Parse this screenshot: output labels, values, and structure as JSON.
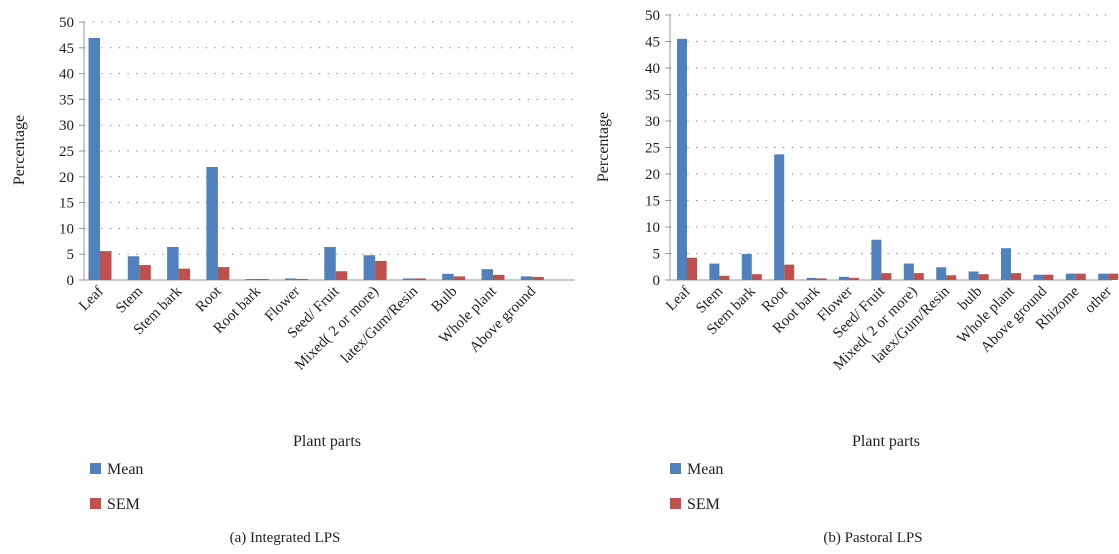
{
  "chart_data": [
    {
      "type": "bar",
      "caption": "(a)  Integrated LPS",
      "xlabel": "Plant parts",
      "ylabel": "Percentage",
      "ylim": [
        0,
        50
      ],
      "yticks": [
        0,
        5,
        10,
        15,
        20,
        25,
        30,
        35,
        40,
        45,
        50
      ],
      "grid": "dotted horizontal",
      "legend_position": "bottom-left",
      "categories": [
        "Leaf",
        "Stem",
        "Stem bark",
        "Root",
        "Root bark",
        "Flower",
        "Seed/ Fruit",
        "Mixed( 2 or more)",
        "latex/Gum/Resin",
        "Bulb",
        "Whole plant",
        "Above ground"
      ],
      "series": [
        {
          "name": "Mean",
          "color": "#4f81bd",
          "values": [
            46.9,
            4.6,
            6.4,
            21.9,
            0.2,
            0.3,
            6.4,
            4.8,
            0.3,
            1.2,
            2.1,
            0.7
          ]
        },
        {
          "name": "SEM",
          "color": "#c0504d",
          "values": [
            5.6,
            2.9,
            2.2,
            2.5,
            0.2,
            0.2,
            1.7,
            3.7,
            0.3,
            0.7,
            1.0,
            0.6
          ]
        }
      ]
    },
    {
      "type": "bar",
      "caption": "(b)  Pastoral LPS",
      "xlabel": "Plant parts",
      "ylabel": "Percentage",
      "ylim": [
        0,
        50
      ],
      "yticks": [
        0,
        5,
        10,
        15,
        20,
        25,
        30,
        35,
        40,
        45,
        50
      ],
      "grid": "dotted horizontal",
      "legend_position": "bottom-left",
      "categories": [
        "Leaf",
        "Stem",
        "Stem bark",
        "Root",
        "Root bark",
        "Flower",
        "Seed/ Fruit",
        "Mixed( 2 or more)",
        "latex/Gum/Resin",
        "bulb",
        "Whole plant",
        "Above ground",
        "Rhizome",
        "other"
      ],
      "series": [
        {
          "name": "Mean",
          "color": "#4f81bd",
          "values": [
            45.5,
            3.1,
            4.9,
            23.7,
            0.4,
            0.6,
            7.6,
            3.1,
            2.4,
            1.6,
            6.0,
            1.0,
            1.2,
            1.2
          ]
        },
        {
          "name": "SEM",
          "color": "#c0504d",
          "values": [
            4.2,
            0.8,
            1.1,
            2.9,
            0.3,
            0.4,
            1.3,
            1.3,
            0.9,
            1.1,
            1.3,
            1.0,
            1.2,
            1.2
          ]
        }
      ]
    }
  ]
}
